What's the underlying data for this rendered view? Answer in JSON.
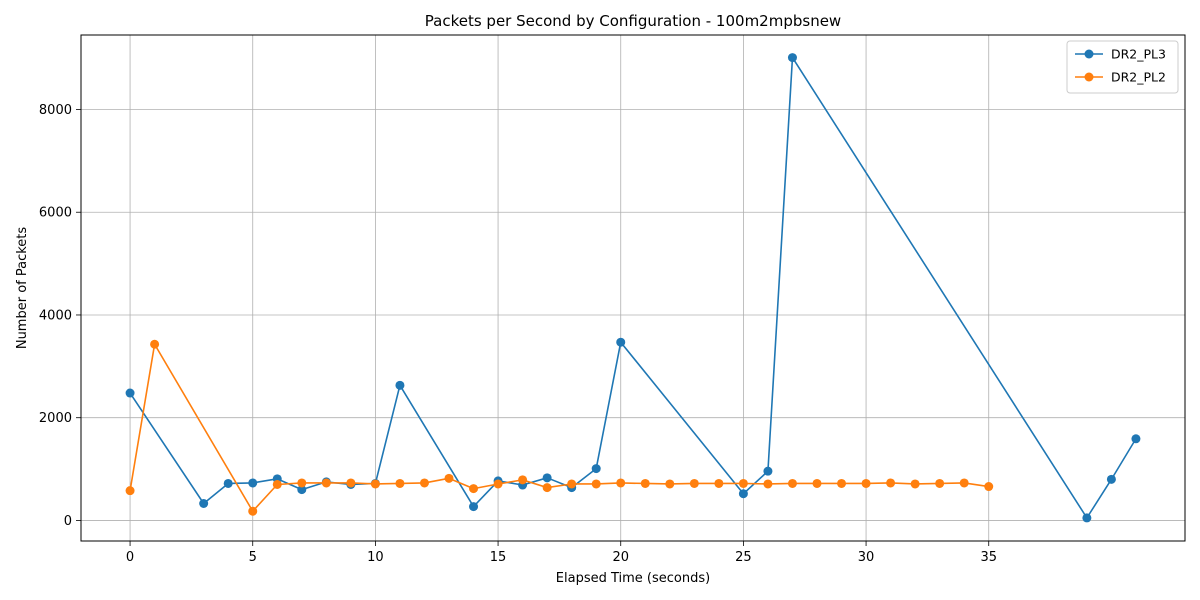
{
  "chart_data": {
    "type": "line",
    "title": "Packets per Second by Configuration - 100m2mpbsnew",
    "xlabel": "Elapsed Time (seconds)",
    "ylabel": "Number of Packets",
    "xlim": [
      -2,
      43
    ],
    "ylim": [
      -400,
      9450
    ],
    "xticks": [
      0,
      5,
      10,
      15,
      20,
      25,
      30,
      35
    ],
    "yticks": [
      0,
      2000,
      4000,
      6000,
      8000
    ],
    "grid": true,
    "legend_position": "top-right",
    "series": [
      {
        "name": "DR2_PL3",
        "color": "#1f77b4",
        "x": [
          0,
          3,
          4,
          5,
          6,
          7,
          8,
          9,
          10,
          11,
          14,
          15,
          16,
          17,
          18,
          19,
          20,
          25,
          26,
          27,
          39,
          40,
          41
        ],
        "y": [
          2480,
          330,
          720,
          730,
          810,
          600,
          750,
          700,
          720,
          2630,
          270,
          770,
          690,
          830,
          640,
          1010,
          3470,
          520,
          960,
          9010,
          50,
          800,
          1590
        ]
      },
      {
        "name": "DR2_PL2",
        "color": "#ff7f0e",
        "x": [
          0,
          1,
          5,
          6,
          7,
          8,
          9,
          10,
          11,
          12,
          13,
          14,
          15,
          16,
          17,
          18,
          19,
          20,
          21,
          22,
          23,
          24,
          25,
          26,
          27,
          28,
          29,
          30,
          31,
          32,
          33,
          34,
          35
        ],
        "y": [
          580,
          3430,
          180,
          700,
          730,
          730,
          730,
          710,
          720,
          730,
          820,
          620,
          710,
          790,
          640,
          710,
          710,
          730,
          720,
          710,
          720,
          720,
          720,
          710,
          720,
          720,
          720,
          720,
          730,
          710,
          720,
          730,
          660
        ]
      }
    ]
  }
}
